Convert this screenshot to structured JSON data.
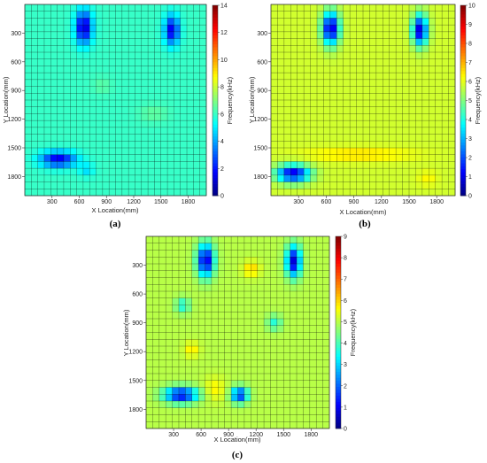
{
  "chart_data": [
    {
      "type": "heatmap",
      "panel_label": "(a)",
      "xlabel": "X Location(mm)",
      "ylabel": "Y Location(mm)",
      "colorbar_label": "Frequency(kHz)",
      "xticks": [
        "300",
        "600",
        "900",
        "1200",
        "1500",
        "1800"
      ],
      "yticks": [
        "300",
        "600",
        "900",
        "1200",
        "1500",
        "1800"
      ],
      "colorbar_ticks": [
        "0",
        "2",
        "4",
        "6",
        "8",
        "10",
        "12",
        "14"
      ],
      "x_range": [
        0,
        2000
      ],
      "y_range": [
        0,
        2000
      ],
      "y_axis_inverted": true,
      "color_range": [
        0,
        14
      ],
      "baseline_value": 6,
      "anomalies": [
        {
          "x": 650,
          "y": 240,
          "value": 1.0,
          "rx": 90,
          "ry": 170
        },
        {
          "x": 1620,
          "y": 270,
          "value": 1.5,
          "rx": 80,
          "ry": 150
        },
        {
          "x": 370,
          "y": 1620,
          "value": 1.5,
          "rx": 190,
          "ry": 80
        },
        {
          "x": 680,
          "y": 1730,
          "value": 4.8,
          "rx": 80,
          "ry": 70
        },
        {
          "x": 1420,
          "y": 1140,
          "value": 6.6,
          "rx": 160,
          "ry": 90
        },
        {
          "x": 850,
          "y": 850,
          "value": 6.5,
          "rx": 100,
          "ry": 90
        }
      ]
    },
    {
      "type": "heatmap",
      "panel_label": "(b)",
      "xlabel": "X Location(mm)",
      "ylabel": "Y Location(mm)",
      "colorbar_label": "Frequency(kHz)",
      "xticks": [
        "300",
        "600",
        "900",
        "1200",
        "1500",
        "1800"
      ],
      "yticks": [
        "300",
        "600",
        "900",
        "1200",
        "1500",
        "1800"
      ],
      "colorbar_ticks": [
        "0",
        "1",
        "2",
        "3",
        "4",
        "5",
        "6",
        "7",
        "8",
        "9",
        "10"
      ],
      "x_range": [
        0,
        2000
      ],
      "y_range": [
        0,
        2000
      ],
      "y_axis_inverted": true,
      "color_range": [
        0,
        10
      ],
      "baseline_value": 5.8,
      "anomalies": [
        {
          "x": 650,
          "y": 250,
          "value": 0.7,
          "rx": 90,
          "ry": 170
        },
        {
          "x": 1620,
          "y": 270,
          "value": 0.9,
          "rx": 80,
          "ry": 160
        },
        {
          "x": 240,
          "y": 1770,
          "value": 1.0,
          "rx": 180,
          "ry": 90
        },
        {
          "x": 960,
          "y": 1570,
          "value": 6.6,
          "rx": 560,
          "ry": 70
        },
        {
          "x": 1700,
          "y": 1820,
          "value": 6.3,
          "rx": 100,
          "ry": 80
        }
      ]
    },
    {
      "type": "heatmap",
      "panel_label": "(c)",
      "xlabel": "X Location(mm)",
      "ylabel": "Y Location(mm)",
      "colorbar_label": "Frequency(kHz)",
      "xticks": [
        "300",
        "600",
        "900",
        "1200",
        "1500",
        "1800"
      ],
      "yticks": [
        "300",
        "600",
        "900",
        "1200",
        "1500",
        "1800"
      ],
      "colorbar_ticks": [
        "0",
        "1",
        "2",
        "3",
        "4",
        "5",
        "6",
        "7",
        "8",
        "9"
      ],
      "x_range": [
        0,
        2000
      ],
      "y_range": [
        0,
        2000
      ],
      "y_axis_inverted": true,
      "color_range": [
        0,
        9
      ],
      "baseline_value": 5.0,
      "anomalies": [
        {
          "x": 650,
          "y": 250,
          "value": 0.8,
          "rx": 90,
          "ry": 170
        },
        {
          "x": 1610,
          "y": 260,
          "value": 0.8,
          "rx": 80,
          "ry": 160
        },
        {
          "x": 380,
          "y": 1650,
          "value": 1.0,
          "rx": 180,
          "ry": 80
        },
        {
          "x": 1020,
          "y": 1650,
          "value": 1.4,
          "rx": 90,
          "ry": 80
        },
        {
          "x": 400,
          "y": 720,
          "value": 3.6,
          "rx": 80,
          "ry": 80
        },
        {
          "x": 1400,
          "y": 900,
          "value": 3.7,
          "rx": 80,
          "ry": 80
        },
        {
          "x": 1150,
          "y": 340,
          "value": 6.0,
          "rx": 90,
          "ry": 80
        },
        {
          "x": 500,
          "y": 1180,
          "value": 5.8,
          "rx": 80,
          "ry": 80
        },
        {
          "x": 750,
          "y": 1590,
          "value": 5.7,
          "rx": 110,
          "ry": 120
        }
      ]
    }
  ]
}
